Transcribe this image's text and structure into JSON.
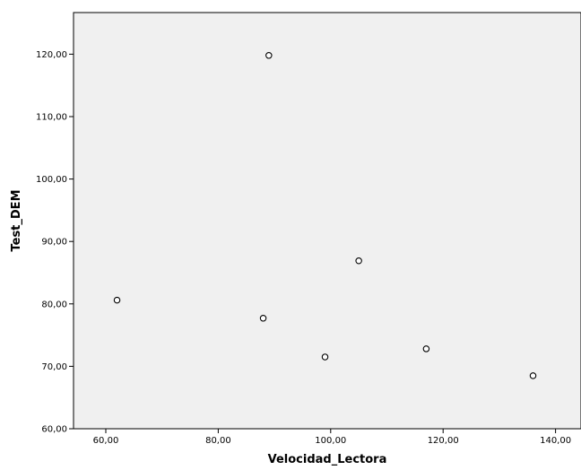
{
  "chart_data": {
    "type": "scatter",
    "title": "",
    "xlabel": "Velocidad_Lectora",
    "ylabel": "Test_DEM",
    "xlim": [
      55,
      145
    ],
    "ylim": [
      60,
      121
    ],
    "x_ticks": [
      {
        "value": 60,
        "label": "60,00"
      },
      {
        "value": 80,
        "label": "80,00"
      },
      {
        "value": 100,
        "label": "100,00"
      },
      {
        "value": 120,
        "label": "120,00"
      },
      {
        "value": 140,
        "label": "140,00"
      }
    ],
    "y_ticks": [
      {
        "value": 60,
        "label": "60,00"
      },
      {
        "value": 70,
        "label": "70,00"
      },
      {
        "value": 80,
        "label": "80,00"
      },
      {
        "value": 90,
        "label": "90,00"
      },
      {
        "value": 100,
        "label": "100,00"
      },
      {
        "value": 110,
        "label": "110,00"
      },
      {
        "value": 120,
        "label": "120,00"
      }
    ],
    "points": [
      {
        "x": 62,
        "y": 80.6
      },
      {
        "x": 88,
        "y": 77.7
      },
      {
        "x": 89,
        "y": 119.8
      },
      {
        "x": 99,
        "y": 71.5
      },
      {
        "x": 105,
        "y": 86.9
      },
      {
        "x": 117,
        "y": 72.8
      },
      {
        "x": 136,
        "y": 68.5
      }
    ],
    "grid": false,
    "colors": {
      "plot_background": "#f0f0f0",
      "marker_stroke": "#000000",
      "marker_fill": "#ffffff"
    }
  }
}
